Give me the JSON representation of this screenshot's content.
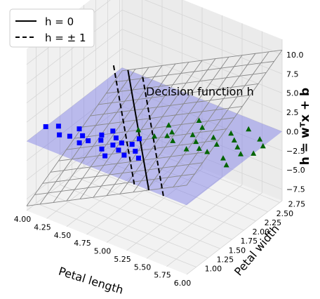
{
  "chart_data": {
    "type": "3d-surface-scatter",
    "title": "",
    "annotation": "Decision function h",
    "xlabel": "Petal length",
    "ylabel": "Petal width",
    "zlabel": "h = wᵀx + b",
    "xlim": [
      4.0,
      6.0
    ],
    "ylim": [
      0.8,
      2.8
    ],
    "zlim": [
      -9,
      12
    ],
    "x_ticks": [
      "4.00",
      "4.25",
      "4.50",
      "4.75",
      "5.00",
      "5.25",
      "5.50",
      "5.75",
      "6.00"
    ],
    "y_ticks": [
      "1.00",
      "1.25",
      "1.50",
      "1.75",
      "2.00",
      "2.25",
      "2.50",
      "2.75"
    ],
    "z_ticks": [
      "−7.5",
      "−5.0",
      "−2.5",
      "0.0",
      "2.5",
      "5.0",
      "7.5",
      "10.0"
    ],
    "legend": {
      "placement": "top-left",
      "entries": [
        {
          "label": "h = 0",
          "style": "solid"
        },
        {
          "label": "h = ± 1",
          "style": "dashed"
        }
      ]
    },
    "colors": {
      "class_0": "#0000ff",
      "class_1": "#006400",
      "plane": "#6f6fe6",
      "surface_grid": "#888888"
    },
    "series": [
      {
        "name": "",
        "marker": "square",
        "points": [
          [
            4.0,
            1.2
          ],
          [
            4.1,
            1.3
          ],
          [
            4.2,
            1.15
          ],
          [
            4.3,
            1.2
          ],
          [
            4.3,
            1.4
          ],
          [
            4.4,
            1.3
          ],
          [
            4.45,
            1.15
          ],
          [
            4.5,
            1.25
          ],
          [
            4.55,
            1.45
          ],
          [
            4.6,
            1.35
          ],
          [
            4.7,
            1.2
          ],
          [
            4.7,
            1.5
          ],
          [
            4.75,
            1.35
          ],
          [
            4.8,
            1.1
          ],
          [
            4.8,
            1.45
          ],
          [
            4.85,
            1.3
          ],
          [
            4.9,
            1.5
          ],
          [
            4.95,
            1.25
          ],
          [
            5.0,
            1.4
          ],
          [
            5.1,
            1.3
          ],
          [
            4.6,
            1.6
          ],
          [
            4.9,
            1.65
          ]
        ]
      },
      {
        "name": "",
        "marker": "triangle",
        "points": [
          [
            4.8,
            1.8
          ],
          [
            5.0,
            1.8
          ],
          [
            5.1,
            1.9
          ],
          [
            5.1,
            2.0
          ],
          [
            5.2,
            1.85
          ],
          [
            5.3,
            2.1
          ],
          [
            5.4,
            2.0
          ],
          [
            5.5,
            2.2
          ],
          [
            5.5,
            1.9
          ],
          [
            5.6,
            2.4
          ],
          [
            5.6,
            2.1
          ],
          [
            5.7,
            2.3
          ],
          [
            5.8,
            2.2
          ],
          [
            5.9,
            2.5
          ],
          [
            5.8,
            1.9
          ],
          [
            6.0,
            2.4
          ],
          [
            5.9,
            2.1
          ],
          [
            5.7,
            2.6
          ],
          [
            5.3,
            2.3
          ],
          [
            5.4,
            1.8
          ],
          [
            6.0,
            2.2
          ],
          [
            5.9,
            1.8
          ],
          [
            5.6,
            1.9
          ],
          [
            5.0,
            2.1
          ],
          [
            5.2,
            2.4
          ]
        ]
      }
    ],
    "decision_function": {
      "w": [
        5.5,
        4.0
      ],
      "b": -33.6
    }
  }
}
